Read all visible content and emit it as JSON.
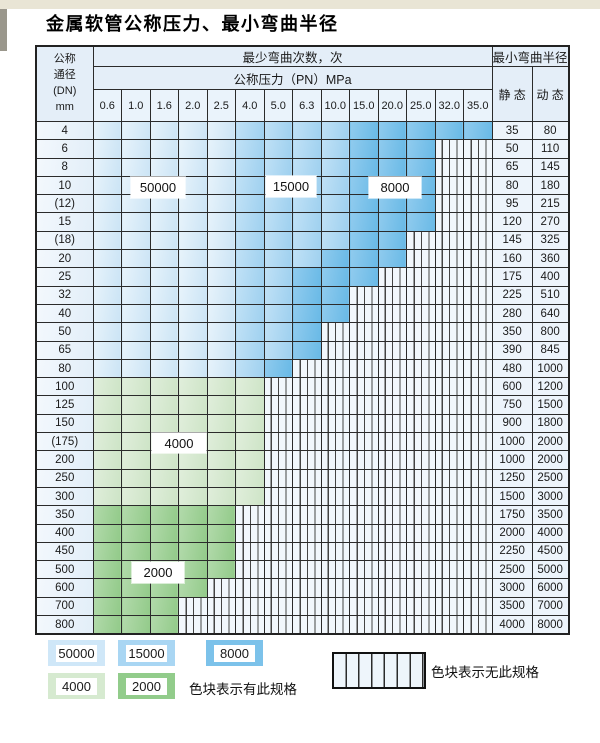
{
  "title": "金属软管公称压力、最小弯曲半径",
  "table": {
    "header": {
      "dn_lines": [
        "公称",
        "通径",
        "(DN)",
        "mm"
      ],
      "bend_cycles_label": "最少弯曲次数，次",
      "pressure_label": "公称压力（PN）MPa",
      "radius_label": "最小弯曲半径",
      "static_label": "静 态",
      "dynamic_label": "动 态",
      "pressure_columns": [
        "0.6",
        "1.0",
        "1.6",
        "2.0",
        "2.5",
        "4.0",
        "5.0",
        "6.3",
        "10.0",
        "15.0",
        "20.0",
        "25.0",
        "32.0",
        "35.0"
      ]
    },
    "zone_codes": {
      "A": "50000",
      "B": "15000",
      "C": "8000",
      "D": "4000",
      "E": "2000",
      "N": "no-spec"
    },
    "rows": [
      {
        "dn": "4",
        "static": "35",
        "dynamic": "80",
        "zones": "AAAAABBBBCCCCC"
      },
      {
        "dn": "6",
        "static": "50",
        "dynamic": "110",
        "zones": "AAAAABBBBCCCNN"
      },
      {
        "dn": "8",
        "static": "65",
        "dynamic": "145",
        "zones": "AAAAABBBBCCCNN"
      },
      {
        "dn": "10",
        "static": "80",
        "dynamic": "180",
        "zones": "AAAAABBBBCCCNN"
      },
      {
        "dn": "(12)",
        "static": "95",
        "dynamic": "215",
        "zones": "AAAAABBBBCCCNN"
      },
      {
        "dn": "15",
        "static": "120",
        "dynamic": "270",
        "zones": "AAAAABBBBCCCNN"
      },
      {
        "dn": "(18)",
        "static": "145",
        "dynamic": "325",
        "zones": "AAAAABBBBCCNNN"
      },
      {
        "dn": "20",
        "static": "160",
        "dynamic": "360",
        "zones": "AAAAABBBCCCNNN"
      },
      {
        "dn": "25",
        "static": "175",
        "dynamic": "400",
        "zones": "AAAAABBCCCNNNN"
      },
      {
        "dn": "32",
        "static": "225",
        "dynamic": "510",
        "zones": "AAAAABBCCNNNNN"
      },
      {
        "dn": "40",
        "static": "280",
        "dynamic": "640",
        "zones": "AAAAABBCCNNNNN"
      },
      {
        "dn": "50",
        "static": "350",
        "dynamic": "800",
        "zones": "AAAAABBCNNNNNN"
      },
      {
        "dn": "65",
        "static": "390",
        "dynamic": "845",
        "zones": "AAAAABBCNNNNNN"
      },
      {
        "dn": "80",
        "static": "480",
        "dynamic": "1000",
        "zones": "AAAAABCNNNNNNN"
      },
      {
        "dn": "100",
        "static": "600",
        "dynamic": "1200",
        "zones": "DDDDDDNNNNNNNN"
      },
      {
        "dn": "125",
        "static": "750",
        "dynamic": "1500",
        "zones": "DDDDDDNNNNNNNN"
      },
      {
        "dn": "150",
        "static": "900",
        "dynamic": "1800",
        "zones": "DDDDDDNNNNNNNN"
      },
      {
        "dn": "(175)",
        "static": "1000",
        "dynamic": "2000",
        "zones": "DDDDDDNNNNNNNN"
      },
      {
        "dn": "200",
        "static": "1000",
        "dynamic": "2000",
        "zones": "DDDDDDNNNNNNNN"
      },
      {
        "dn": "250",
        "static": "1250",
        "dynamic": "2500",
        "zones": "DDDDDDNNNNNNNN"
      },
      {
        "dn": "300",
        "static": "1500",
        "dynamic": "3000",
        "zones": "DDDDDDNNNNNNNN"
      },
      {
        "dn": "350",
        "static": "1750",
        "dynamic": "3500",
        "zones": "EEEEENNNNNNNNN"
      },
      {
        "dn": "400",
        "static": "2000",
        "dynamic": "4000",
        "zones": "EEEEENNNNNNNNN"
      },
      {
        "dn": "450",
        "static": "2250",
        "dynamic": "4500",
        "zones": "EEEEENNNNNNNNN"
      },
      {
        "dn": "500",
        "static": "2500",
        "dynamic": "5000",
        "zones": "EEEEENNNNNNNNN"
      },
      {
        "dn": "600",
        "static": "3000",
        "dynamic": "6000",
        "zones": "EEEENNNNNNNNNN"
      },
      {
        "dn": "700",
        "static": "3500",
        "dynamic": "7000",
        "zones": "EEENNNNNNNNNNN"
      },
      {
        "dn": "800",
        "static": "4000",
        "dynamic": "8000",
        "zones": "EEENNNNNNNNNNN"
      }
    ]
  },
  "zone_labels": {
    "z50000": "50000",
    "z15000": "15000",
    "z8000": "8000",
    "z4000": "4000",
    "z2000": "2000"
  },
  "legend": {
    "items": [
      {
        "value": "50000",
        "color": "#cfe7f8"
      },
      {
        "value": "15000",
        "color": "#a9d6f3"
      },
      {
        "value": "8000",
        "color": "#7cc2ea"
      },
      {
        "value": "4000",
        "color": "#d6ead0"
      },
      {
        "value": "2000",
        "color": "#92cc8b"
      }
    ],
    "has_spec_label": "色块表示有此规格",
    "no_spec_label": "色块表示无此规格"
  },
  "colors": {
    "blue_50000": "#d9ecf8",
    "blue_15000": "#aed8f2",
    "blue_8000": "#7cc3ea",
    "green_4000": "#d6ead0",
    "green_2000": "#a3d29c",
    "no_spec_bg": "#f1f7fc",
    "border": "#2b2b2b",
    "header_bg": "#e4eef8",
    "top_band": "#e9e5d5"
  }
}
